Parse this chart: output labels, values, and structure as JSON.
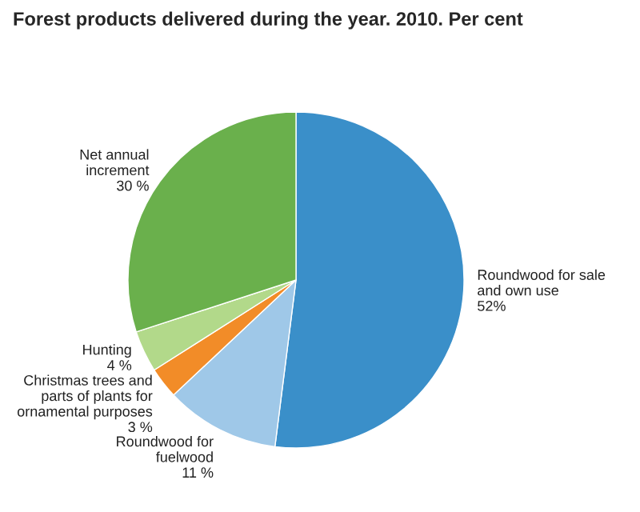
{
  "chart_data": {
    "type": "pie",
    "title": "Forest products delivered during the year. 2010. Per cent",
    "categories": [
      "Roundwood for sale\nand own use",
      "Roundwood for\nfuelwood",
      "Christmas trees and\nparts of plants for\nornamental purposes",
      "Hunting",
      "Net annual\nincrement"
    ],
    "values": [
      52,
      11,
      3,
      4,
      30
    ],
    "value_labels": [
      "52%",
      "11 %",
      "3 %",
      "4 %",
      "30 %"
    ],
    "colors": [
      "#3a8fc9",
      "#9fc8e8",
      "#f28c28",
      "#b2d98a",
      "#6ab04c"
    ],
    "legend": false
  }
}
